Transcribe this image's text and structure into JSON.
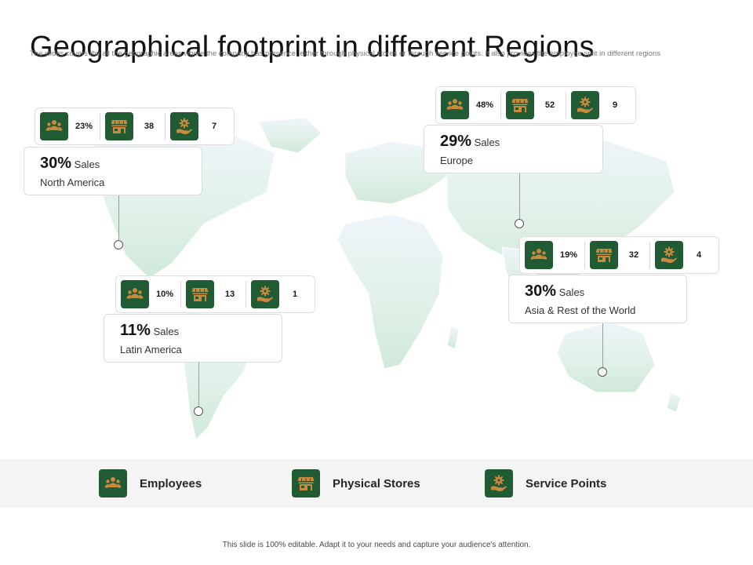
{
  "title": "Geographical footprint in different Regions",
  "subtitle": "The slides covers the all the geographic areas where the company has presence, either through physical stores or through service points. It also provides the employee split in different regions",
  "colors": {
    "accent": "#215b34",
    "icon_fill": "#c98a3e",
    "map": "#dcefe6"
  },
  "sales_word": "Sales",
  "regions": [
    {
      "name": "North America",
      "sales": "30%",
      "employees": "23%",
      "stores": "38",
      "service_points": "7"
    },
    {
      "name": "Europe",
      "sales": "29%",
      "employees": "48%",
      "stores": "52",
      "service_points": "9"
    },
    {
      "name": "Asia & Rest of the World",
      "sales": "30%",
      "employees": "19%",
      "stores": "32",
      "service_points": "4"
    },
    {
      "name": "Latin America",
      "sales": "11%",
      "employees": "10%",
      "stores": "13",
      "service_points": "1"
    }
  ],
  "legend": [
    {
      "label": "Employees",
      "icon": "employees-icon"
    },
    {
      "label": "Physical Stores",
      "icon": "store-icon"
    },
    {
      "label": "Service Points",
      "icon": "service-hand-gear-icon"
    }
  ],
  "footer": "This slide is 100% editable. Adapt it to your needs and capture your audience's attention."
}
